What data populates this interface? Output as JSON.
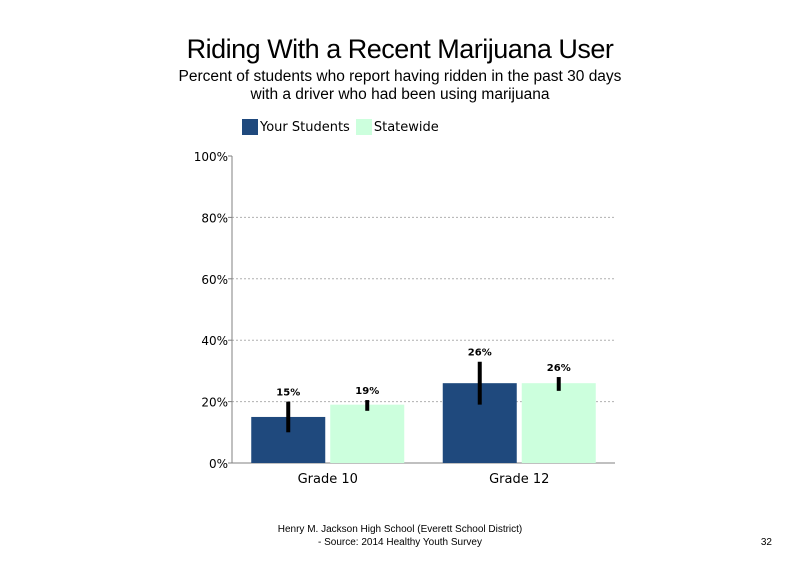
{
  "title": "Riding With a Recent Marijuana User",
  "subtitle_line1": "Percent of students who report having ridden in the past 30 days",
  "subtitle_line2": "with a driver who had been using marijuana",
  "footer_line1": "Henry M. Jackson High School (Everett School District)",
  "footer_line2": "- Source: 2014 Healthy Youth Survey",
  "page_number": "32",
  "colors": {
    "your_students": "#1f497d",
    "statewide": "#ccffdd",
    "error_bar": "#000000",
    "grid": "#b0b0b0"
  },
  "chart_data": {
    "type": "bar",
    "categories": [
      "Grade 10",
      "Grade 12"
    ],
    "series": [
      {
        "name": "Your Students",
        "values": [
          15,
          26
        ],
        "labels": [
          "15%",
          "26%"
        ],
        "error": [
          [
            10,
            20
          ],
          [
            19,
            33
          ]
        ]
      },
      {
        "name": "Statewide",
        "values": [
          19,
          26
        ],
        "labels": [
          "19%",
          "26%"
        ],
        "error": [
          [
            17,
            20.5
          ],
          [
            23.5,
            28
          ]
        ]
      }
    ],
    "ylim": [
      0,
      100
    ],
    "yticks": [
      0,
      20,
      40,
      60,
      80,
      100
    ],
    "ytick_labels": [
      "0%",
      "20%",
      "40%",
      "60%",
      "80%",
      "100%"
    ],
    "grid": true,
    "legend": "top-left"
  }
}
